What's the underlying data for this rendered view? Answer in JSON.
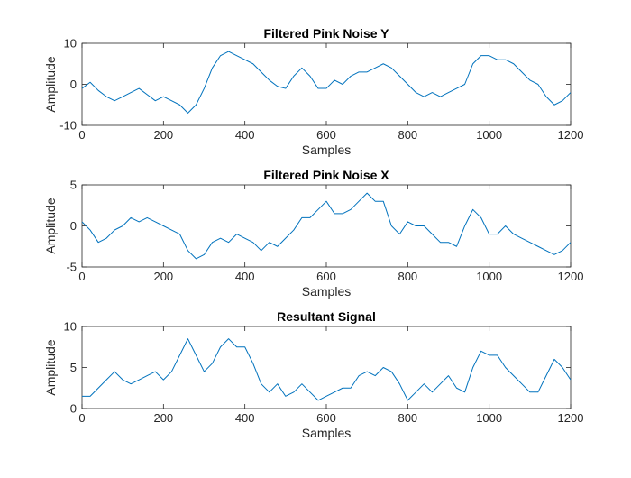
{
  "chart_data": [
    {
      "type": "line",
      "title": "Filtered Pink Noise Y",
      "xlabel": "Samples",
      "ylabel": "Amplitude",
      "xlim": [
        0,
        1200
      ],
      "ylim": [
        -10,
        10
      ],
      "xticks": [
        0,
        200,
        400,
        600,
        800,
        1000,
        1200
      ],
      "yticks": [
        -10,
        0,
        10
      ],
      "grid": false,
      "color": "#0072BD",
      "series": [
        {
          "x": [
            0,
            20,
            40,
            60,
            80,
            100,
            120,
            140,
            160,
            180,
            200,
            220,
            240,
            260,
            280,
            300,
            320,
            340,
            360,
            380,
            400,
            420,
            440,
            460,
            480,
            500,
            520,
            540,
            560,
            580,
            600,
            620,
            640,
            660,
            680,
            700,
            720,
            740,
            760,
            780,
            800,
            820,
            840,
            860,
            880,
            900,
            920,
            940,
            960,
            980,
            1000,
            1020,
            1040,
            1060,
            1080,
            1100,
            1120,
            1140,
            1160,
            1180,
            1200
          ],
          "values": [
            -1,
            0.5,
            -1.5,
            -3,
            -4,
            -3,
            -2,
            -1,
            -2.5,
            -4,
            -3,
            -4,
            -5,
            -7,
            -5,
            -1,
            4,
            7,
            8,
            7,
            6,
            5,
            3,
            1,
            -0.5,
            -1,
            2,
            4,
            2,
            -1,
            -1,
            1,
            0,
            2,
            3,
            3,
            4,
            5,
            4,
            2,
            0,
            -2,
            -3,
            -2,
            -3,
            -2,
            -1,
            0,
            5,
            7,
            7,
            6,
            6,
            5,
            3,
            1,
            0,
            -3,
            -5,
            -4,
            -2
          ]
        }
      ]
    },
    {
      "type": "line",
      "title": "Filtered Pink Noise X",
      "xlabel": "Samples",
      "ylabel": "Amplitude",
      "xlim": [
        0,
        1200
      ],
      "ylim": [
        -5,
        5
      ],
      "xticks": [
        0,
        200,
        400,
        600,
        800,
        1000,
        1200
      ],
      "yticks": [
        -5,
        0,
        5
      ],
      "grid": false,
      "color": "#0072BD",
      "series": [
        {
          "x": [
            0,
            20,
            40,
            60,
            80,
            100,
            120,
            140,
            160,
            180,
            200,
            220,
            240,
            260,
            280,
            300,
            320,
            340,
            360,
            380,
            400,
            420,
            440,
            460,
            480,
            500,
            520,
            540,
            560,
            580,
            600,
            620,
            640,
            660,
            680,
            700,
            720,
            740,
            760,
            780,
            800,
            820,
            840,
            860,
            880,
            900,
            920,
            940,
            960,
            980,
            1000,
            1020,
            1040,
            1060,
            1080,
            1100,
            1120,
            1140,
            1160,
            1180,
            1200
          ],
          "values": [
            0.5,
            -0.5,
            -2,
            -1.5,
            -0.5,
            0,
            1,
            0.5,
            1,
            0.5,
            0,
            -0.5,
            -1,
            -3,
            -4,
            -3.5,
            -2,
            -1.5,
            -2,
            -1,
            -1.5,
            -2,
            -3,
            -2,
            -2.5,
            -1.5,
            -0.5,
            1,
            1,
            2,
            3,
            1.5,
            1.5,
            2,
            3,
            4,
            3,
            3,
            0,
            -1,
            0.5,
            0,
            0,
            -1,
            -2,
            -2,
            -2.5,
            0,
            2,
            1,
            -1,
            -1,
            0,
            -1,
            -1.5,
            -2,
            -2.5,
            -3,
            -3.5,
            -3,
            -2
          ]
        }
      ]
    },
    {
      "type": "line",
      "title": "Resultant Signal",
      "xlabel": "Samples",
      "ylabel": "Amplitude",
      "xlim": [
        0,
        1200
      ],
      "ylim": [
        0,
        10
      ],
      "xticks": [
        0,
        200,
        400,
        600,
        800,
        1000,
        1200
      ],
      "yticks": [
        0,
        5,
        10
      ],
      "grid": false,
      "color": "#0072BD",
      "series": [
        {
          "x": [
            0,
            20,
            40,
            60,
            80,
            100,
            120,
            140,
            160,
            180,
            200,
            220,
            240,
            260,
            280,
            300,
            320,
            340,
            360,
            380,
            400,
            420,
            440,
            460,
            480,
            500,
            520,
            540,
            560,
            580,
            600,
            620,
            640,
            660,
            680,
            700,
            720,
            740,
            760,
            780,
            800,
            820,
            840,
            860,
            880,
            900,
            920,
            940,
            960,
            980,
            1000,
            1020,
            1040,
            1060,
            1080,
            1100,
            1120,
            1140,
            1160,
            1180,
            1200
          ],
          "values": [
            1.5,
            1.5,
            2.5,
            3.5,
            4.5,
            3.5,
            3,
            3.5,
            4,
            4.5,
            3.5,
            4.5,
            6.5,
            8.5,
            6.5,
            4.5,
            5.5,
            7.5,
            8.5,
            7.5,
            7.5,
            5.5,
            3,
            2,
            3,
            1.5,
            2,
            3,
            2,
            1,
            1.5,
            2,
            2.5,
            2.5,
            4,
            4.5,
            4,
            5,
            4.5,
            3,
            1,
            2,
            3,
            2,
            3,
            4,
            2.5,
            2,
            5,
            7,
            6.5,
            6.5,
            5,
            4,
            3,
            2,
            2,
            4,
            6,
            5,
            3.5
          ]
        }
      ]
    }
  ]
}
